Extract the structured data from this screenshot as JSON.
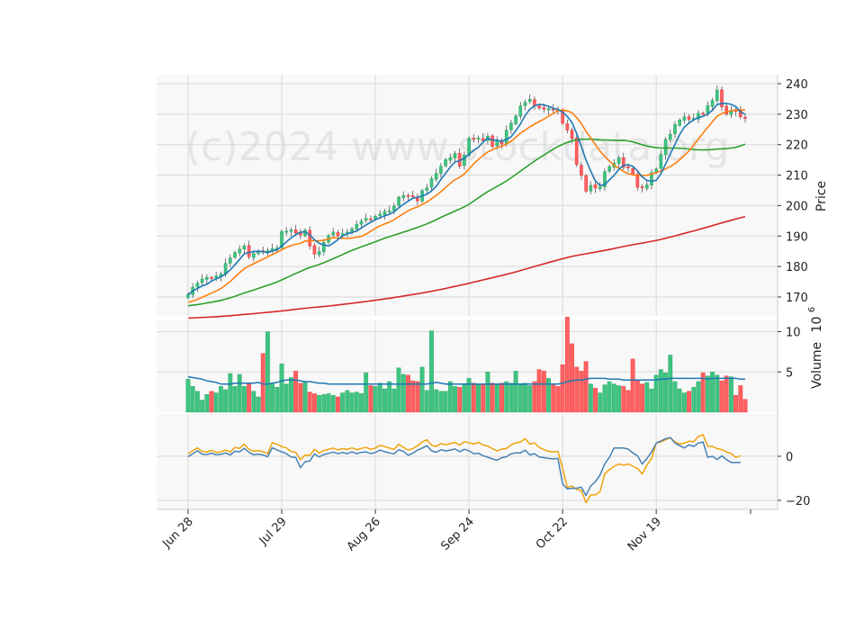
{
  "chart_data": {
    "type": "candlestick",
    "watermark": "(c)2024 www.stockdata.org",
    "price_axis": {
      "label": "Price",
      "ylim": [
        166,
        242
      ],
      "ticks": [
        170,
        180,
        190,
        200,
        210,
        220,
        230,
        240
      ]
    },
    "volume_axis": {
      "label": "Volume",
      "exponent_label": "10",
      "exponent": "6",
      "ylim": [
        0,
        13
      ],
      "ticks": [
        5,
        10
      ]
    },
    "oscillator_axis": {
      "ylim": [
        -23,
        8
      ],
      "ticks": [
        -20,
        0
      ]
    },
    "x_ticks": [
      {
        "index": 0,
        "label": "Jun 28"
      },
      {
        "index": 20,
        "label": "Jul 29"
      },
      {
        "index": 40,
        "label": "Aug 26"
      },
      {
        "index": 60,
        "label": "Sep 24"
      },
      {
        "index": 80,
        "label": "Oct 22"
      },
      {
        "index": 100,
        "label": "Nov 19"
      }
    ],
    "n_bars": 120,
    "colors": {
      "up": "#26a65b",
      "up_fill": "#3fc383",
      "down": "#e8363b",
      "down_fill": "#ff6060",
      "ma_fast": "#1f77b4",
      "ma_mid": "#ff7f0e",
      "ma_slow": "#2ca02c",
      "ma_long": "#d62728",
      "volume_ma": "#1f77b4",
      "osc_1": "#f0a30a",
      "osc_2": "#4682b4",
      "panel_bg": "#f8f8f8",
      "grid": "#d9d9d9"
    },
    "close": [
      170.8,
      173.2,
      174.5,
      175.9,
      176.4,
      176.1,
      176.9,
      177.5,
      181.0,
      182.8,
      184.6,
      185.7,
      186.7,
      183.2,
      184.3,
      185.1,
      184.9,
      185.3,
      185.9,
      186.0,
      191.5,
      191.6,
      192.0,
      191.0,
      190.3,
      191.9,
      186.7,
      184.1,
      184.9,
      187.9,
      190.1,
      191.3,
      190.1,
      190.8,
      191.3,
      192.4,
      193.8,
      194.9,
      195.8,
      195.6,
      196.5,
      197.2,
      198.1,
      198.3,
      199.8,
      202.7,
      203.3,
      203.1,
      203.1,
      201.5,
      204.9,
      205.8,
      208.8,
      210.5,
      212.9,
      215.1,
      215.7,
      217.1,
      212.9,
      216.6,
      222.1,
      221.8,
      222.2,
      221.4,
      222.8,
      219.4,
      221.4,
      220.2,
      224.7,
      227.1,
      229.4,
      232.7,
      233.9,
      234.9,
      232.7,
      232.0,
      231.6,
      231.8,
      231.4,
      231.2,
      227.0,
      224.8,
      222.0,
      213.5,
      209.9,
      204.7,
      206.6,
      205.7,
      206.1,
      211.1,
      212.8,
      213.9,
      215.6,
      212.5,
      212.3,
      210.3,
      206.0,
      205.9,
      206.8,
      210.8,
      212.0,
      216.8,
      221.7,
      223.4,
      226.6,
      228.1,
      229.1,
      228.3,
      228.6,
      230.3,
      230.2,
      232.8,
      234.5,
      237.9,
      232.4,
      230.0,
      231.3,
      230.9,
      229.2,
      228.6
    ],
    "volume": [
      4.1,
      3.2,
      2.6,
      1.5,
      2.2,
      2.6,
      2.4,
      3.2,
      2.8,
      4.8,
      3.2,
      4.7,
      3.2,
      3.6,
      2.6,
      1.9,
      7.3,
      10.0,
      3.5,
      3.1,
      6.0,
      3.5,
      4.3,
      5.1,
      3.6,
      3.7,
      2.5,
      2.3,
      2.1,
      2.2,
      2.3,
      2.1,
      1.9,
      2.4,
      2.7,
      2.4,
      2.5,
      2.3,
      4.9,
      3.3,
      3.2,
      3.6,
      2.9,
      3.8,
      2.9,
      5.5,
      4.7,
      4.6,
      3.9,
      3.8,
      5.6,
      2.7,
      10.1,
      2.8,
      2.6,
      2.6,
      3.8,
      3.2,
      3.1,
      3.5,
      4.2,
      3.6,
      3.4,
      3.5,
      5.0,
      3.6,
      3.4,
      3.6,
      3.8,
      3.6,
      5.1,
      3.4,
      3.6,
      3.3,
      3.8,
      5.3,
      5.1,
      4.2,
      3.5,
      3.2,
      5.9,
      11.8,
      8.5,
      5.6,
      5.1,
      6.3,
      3.5,
      3.0,
      2.4,
      3.4,
      3.8,
      3.5,
      3.3,
      3.2,
      2.7,
      6.6,
      4.0,
      3.5,
      3.7,
      2.9,
      4.6,
      5.3,
      4.9,
      7.1,
      3.8,
      2.9,
      2.4,
      2.6,
      3.1,
      3.8,
      4.9,
      4.5,
      5.0,
      4.6,
      3.9,
      4.5,
      4.4,
      2.1,
      3.3,
      1.6
    ],
    "volume_ma": [
      4.4,
      4.3,
      4.2,
      4.1,
      3.9,
      3.8,
      3.7,
      3.5,
      3.5,
      3.5,
      3.6,
      3.6,
      3.6,
      3.6,
      3.6,
      3.7,
      3.5,
      3.5,
      3.6,
      3.7,
      3.9,
      4.0,
      4.0,
      4.0,
      3.9,
      3.8,
      3.8,
      3.7,
      3.6,
      3.6,
      3.5,
      3.5,
      3.5,
      3.5,
      3.5,
      3.5,
      3.5,
      3.5,
      3.5,
      3.5,
      3.5,
      3.5,
      3.5,
      3.5,
      3.5,
      3.5,
      3.5,
      3.5,
      3.5,
      3.5,
      3.5,
      3.5,
      3.6,
      3.7,
      3.6,
      3.5,
      3.5,
      3.5,
      3.5,
      3.5,
      3.5,
      3.5,
      3.5,
      3.5,
      3.5,
      3.5,
      3.5,
      3.5,
      3.5,
      3.5,
      3.5,
      3.5,
      3.5,
      3.5,
      3.5,
      3.5,
      3.5,
      3.5,
      3.5,
      3.5,
      3.6,
      3.8,
      3.9,
      4.0,
      4.0,
      4.1,
      4.2,
      4.2,
      4.2,
      4.2,
      4.1,
      4.1,
      4.1,
      4.0,
      4.0,
      4.0,
      4.0,
      4.0,
      4.0,
      4.0,
      4.0,
      4.1,
      4.1,
      4.2,
      4.2,
      4.2,
      4.2,
      4.2,
      4.2,
      4.2,
      4.2,
      4.1,
      4.2,
      4.2,
      4.2,
      4.2,
      4.2,
      4.2,
      4.1,
      4.1
    ],
    "osc_1": [
      1.2,
      2.5,
      3.8,
      2.2,
      2.0,
      2.6,
      1.8,
      2.0,
      2.8,
      1.9,
      4.0,
      3.6,
      5.5,
      3.2,
      2.3,
      2.6,
      2.1,
      1.2,
      6.2,
      5.5,
      4.4,
      3.8,
      2.2,
      1.8,
      -1.5,
      0.6,
      0.4,
      3.2,
      1.5,
      2.6,
      3.2,
      3.7,
      2.9,
      3.5,
      3.1,
      3.8,
      3.0,
      3.6,
      4.0,
      3.2,
      3.7,
      5.0,
      4.4,
      3.7,
      3.2,
      5.4,
      4.1,
      2.8,
      3.5,
      4.8,
      6.5,
      7.5,
      5.0,
      4.5,
      5.8,
      5.2,
      5.7,
      6.3,
      5.1,
      6.6,
      6.2,
      5.5,
      6.3,
      5.1,
      4.6,
      3.5,
      2.4,
      3.3,
      3.5,
      5.2,
      6.1,
      6.5,
      8.0,
      5.5,
      6.1,
      4.0,
      3.0,
      2.2,
      2.0,
      2.2,
      -5.5,
      -14.0,
      -13.5,
      -15.0,
      -15.5,
      -21.0,
      -17.5,
      -17.5,
      -16.0,
      -8.0,
      -6.0,
      -4.5,
      -3.5,
      -4.0,
      -3.5,
      -4.5,
      -5.5,
      -8.0,
      -4.0,
      -1.0,
      6.0,
      6.5,
      7.5,
      8.5,
      6.5,
      5.5,
      6.0,
      6.8,
      6.6,
      9.0,
      9.8,
      4.5,
      4.5,
      3.5,
      3.0,
      2.0,
      1.2,
      -0.5,
      0.3
    ],
    "osc_2": [
      -0.2,
      1.2,
      2.5,
      1.0,
      0.8,
      1.4,
      0.7,
      0.9,
      1.5,
      0.6,
      2.3,
      2.0,
      3.6,
      1.8,
      0.7,
      1.0,
      0.6,
      -0.2,
      3.9,
      2.8,
      2.0,
      1.2,
      -0.3,
      -0.5,
      -5.2,
      -2.4,
      -2.2,
      1.1,
      -0.3,
      0.8,
      1.3,
      1.9,
      1.2,
      1.7,
      1.2,
      2.0,
      1.2,
      1.8,
      2.0,
      1.2,
      1.7,
      2.8,
      2.1,
      1.5,
      1.1,
      3.0,
      2.2,
      0.5,
      1.4,
      2.8,
      3.7,
      4.8,
      2.5,
      1.8,
      3.0,
      2.4,
      2.8,
      3.3,
      2.1,
      3.2,
      2.5,
      1.2,
      1.4,
      0.3,
      -0.4,
      -1.2,
      -1.8,
      -0.6,
      -0.2,
      1.2,
      1.5,
      1.5,
      2.8,
      0.6,
      1.2,
      -0.3,
      -0.6,
      -1.0,
      -1.2,
      -1.0,
      -12.5,
      -14.8,
      -14.5,
      -14.5,
      -14.0,
      -17.8,
      -13.5,
      -11.5,
      -8.5,
      -3.5,
      -0.4,
      3.8,
      3.8,
      3.7,
      3.3,
      1.5,
      0.2,
      -3.5,
      -1.0,
      2.0,
      6.0,
      7.0,
      8.0,
      8.5,
      6.0,
      4.8,
      3.8,
      5.2,
      4.5,
      6.0,
      6.5,
      -0.5,
      0.0,
      -1.5,
      0.2,
      -1.5,
      -2.8,
      -2.8,
      -2.8
    ]
  }
}
